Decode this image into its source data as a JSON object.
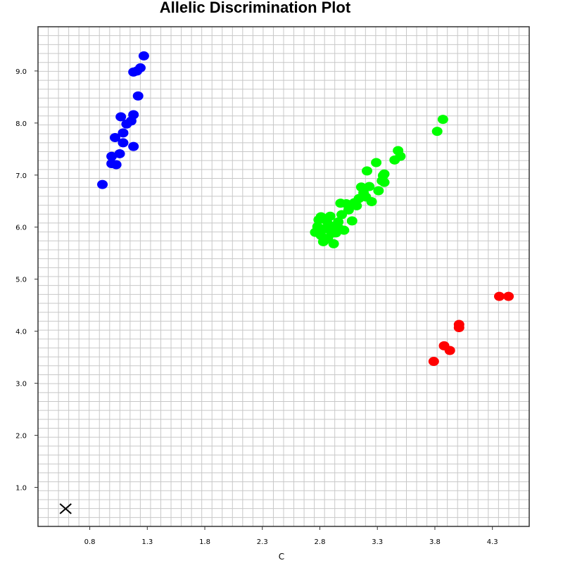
{
  "chart_data": {
    "type": "scatter",
    "title": "Allelic Discrimination Plot",
    "xlabel": "C",
    "ylabel": "",
    "xlim": [
      0.35,
      4.62
    ],
    "ylim": [
      0.25,
      9.85
    ],
    "x_ticks": [
      "0.8",
      "1.3",
      "1.8",
      "2.3",
      "2.8",
      "3.3",
      "3.8",
      "4.3"
    ],
    "x_tick_values": [
      0.8,
      1.3,
      1.8,
      2.3,
      2.8,
      3.3,
      3.8,
      4.3
    ],
    "y_ticks": [
      "1.0",
      "2.0",
      "3.0",
      "4.0",
      "5.0",
      "6.0",
      "7.0",
      "8.0",
      "9.0"
    ],
    "y_tick_values": [
      1.0,
      2.0,
      3.0,
      4.0,
      5.0,
      6.0,
      7.0,
      8.0,
      9.0
    ],
    "grid": true,
    "series": [
      {
        "color": "#0000ff",
        "points": [
          [
            0.91,
            6.82
          ],
          [
            0.99,
            7.22
          ],
          [
            1.03,
            7.2
          ],
          [
            0.99,
            7.36
          ],
          [
            1.06,
            7.41
          ],
          [
            1.02,
            7.72
          ],
          [
            1.09,
            7.62
          ],
          [
            1.09,
            7.81
          ],
          [
            1.12,
            7.98
          ],
          [
            1.07,
            8.12
          ],
          [
            1.16,
            8.04
          ],
          [
            1.18,
            8.16
          ],
          [
            1.18,
            7.55
          ],
          [
            1.22,
            8.52
          ],
          [
            1.18,
            8.98
          ],
          [
            1.21,
            9.0
          ],
          [
            1.24,
            9.06
          ],
          [
            1.27,
            9.29
          ]
        ]
      },
      {
        "color": "#00ff00",
        "points": [
          [
            2.76,
            5.9
          ],
          [
            2.78,
            6.01
          ],
          [
            2.79,
            6.14
          ],
          [
            2.81,
            5.84
          ],
          [
            2.81,
            6.2
          ],
          [
            2.83,
            5.72
          ],
          [
            2.84,
            5.97
          ],
          [
            2.86,
            6.12
          ],
          [
            2.87,
            5.78
          ],
          [
            2.88,
            6.04
          ],
          [
            2.89,
            6.21
          ],
          [
            2.9,
            5.88
          ],
          [
            2.92,
            5.68
          ],
          [
            2.93,
            6.01
          ],
          [
            2.94,
            5.89
          ],
          [
            2.96,
            6.1
          ],
          [
            2.97,
            5.97
          ],
          [
            2.98,
            6.46
          ],
          [
            2.99,
            6.24
          ],
          [
            3.01,
            5.94
          ],
          [
            3.03,
            6.45
          ],
          [
            3.05,
            6.33
          ],
          [
            3.08,
            6.12
          ],
          [
            3.1,
            6.47
          ],
          [
            3.12,
            6.41
          ],
          [
            3.14,
            6.55
          ],
          [
            3.16,
            6.77
          ],
          [
            3.18,
            6.66
          ],
          [
            3.2,
            6.58
          ],
          [
            3.21,
            7.08
          ],
          [
            3.23,
            6.78
          ],
          [
            3.25,
            6.49
          ],
          [
            3.29,
            7.24
          ],
          [
            3.31,
            6.7
          ],
          [
            3.34,
            6.89
          ],
          [
            3.35,
            6.99
          ],
          [
            3.36,
            7.02
          ],
          [
            3.36,
            6.86
          ],
          [
            3.45,
            7.29
          ],
          [
            3.48,
            7.47
          ],
          [
            3.5,
            7.36
          ],
          [
            3.82,
            7.84
          ],
          [
            3.87,
            8.07
          ]
        ]
      },
      {
        "color": "#ff0000",
        "points": [
          [
            3.79,
            3.42
          ],
          [
            3.88,
            3.72
          ],
          [
            3.93,
            3.63
          ],
          [
            4.01,
            4.07
          ],
          [
            4.01,
            4.13
          ],
          [
            4.36,
            4.67
          ],
          [
            4.44,
            4.67
          ]
        ]
      },
      {
        "color": "#000000",
        "marker": "x",
        "points": [
          [
            0.59,
            0.59
          ]
        ]
      }
    ]
  }
}
